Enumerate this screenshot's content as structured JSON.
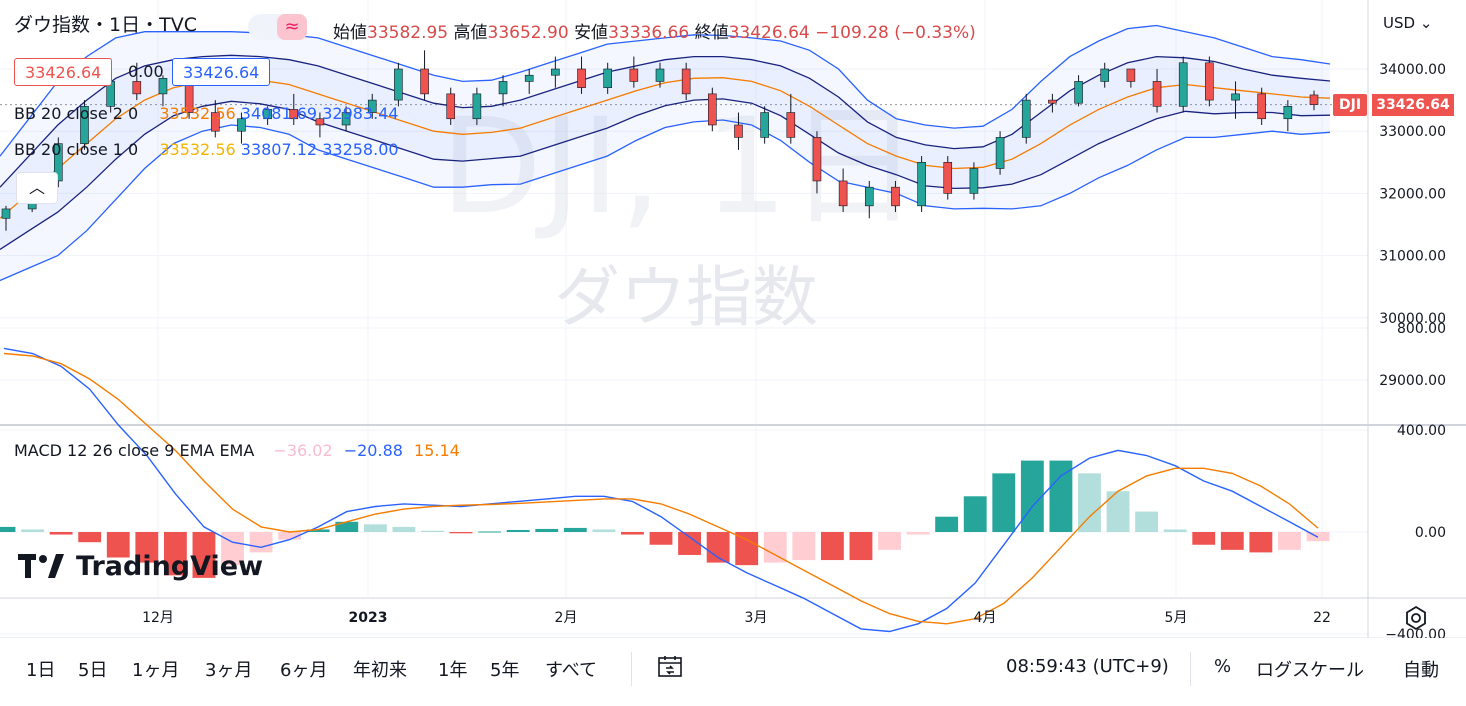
{
  "header": {
    "title": "ダウ指数・1日・TVC",
    "ohlc": [
      {
        "label": "始値",
        "value": "33582.95"
      },
      {
        "label": "高値",
        "value": "33652.90"
      },
      {
        "label": "安値",
        "value": "33336.66"
      },
      {
        "label": "終値",
        "value": "33426.64"
      }
    ],
    "change": "−109.28 (−0.33%)",
    "currency": "USD"
  },
  "badges": {
    "red_price": "33426.64",
    "zero": "0.00",
    "blue_price": "33426.64"
  },
  "legend": {
    "bb2": {
      "label": "BB 20 close 2 0",
      "basis": "33532.56",
      "upper": "34081.69",
      "lower": "32983.44"
    },
    "bb1": {
      "label": "BB 20 close 1 0",
      "basis": "33532.56",
      "upper": "33807.12",
      "lower": "33258.00"
    },
    "macd": {
      "label": "MACD 12 26 close 9 EMA EMA",
      "hist": "−36.02",
      "macd": "−20.88",
      "signal": "15.14"
    }
  },
  "watermark": {
    "symbol": "DJI, 1日",
    "name": "ダウ指数"
  },
  "last_price": {
    "symbol": "DJI",
    "value": "33426.64"
  },
  "logo": "TradingView",
  "chart_data": {
    "type": "candlestick",
    "price_axis": {
      "ticks": [
        "34000.00",
        "33000.00",
        "32000.00",
        "31000.00",
        "30000.00",
        "29000.00"
      ]
    },
    "macd_axis": {
      "ticks": [
        "800.00",
        "400.00",
        "0.00",
        "−400.00"
      ]
    },
    "time_axis": {
      "ticks": [
        "12月",
        "2023",
        "2月",
        "3月",
        "4月",
        "5月",
        "22"
      ]
    },
    "colors": {
      "up": "#26a69a",
      "down": "#ef5350",
      "bb_outer": "#2962ff",
      "bb_basis": "#f57c00",
      "macd": "#2962ff",
      "signal": "#f57c00"
    },
    "bb_basis": [
      31600,
      32000,
      32400,
      32800,
      33200,
      33500,
      33700,
      33800,
      33850,
      33820,
      33750,
      33600,
      33450,
      33300,
      33150,
      33000,
      32950,
      32980,
      33050,
      33200,
      33350,
      33500,
      33650,
      33780,
      33850,
      33860,
      33800,
      33650,
      33400,
      33100,
      32800,
      32600,
      32450,
      32400,
      32420,
      32550,
      32800,
      33100,
      33350,
      33550,
      33700,
      33750,
      33700,
      33650,
      33600,
      33550,
      33530
    ],
    "bb1_upper": [
      32100,
      32600,
      33100,
      33500,
      33850,
      34050,
      34150,
      34200,
      34220,
      34200,
      34150,
      34050,
      33900,
      33750,
      33600,
      33450,
      33380,
      33400,
      33500,
      33650,
      33800,
      33950,
      34050,
      34150,
      34200,
      34200,
      34150,
      34050,
      33850,
      33550,
      33150,
      32900,
      32780,
      32720,
      32750,
      32950,
      33300,
      33650,
      33900,
      34100,
      34200,
      34180,
      34120,
      34000,
      33900,
      33850,
      33807
    ],
    "bb1_lower": [
      31100,
      31400,
      31700,
      32100,
      32550,
      32950,
      33250,
      33400,
      33480,
      33440,
      33350,
      33150,
      33000,
      32850,
      32700,
      32550,
      32520,
      32560,
      32600,
      32750,
      32900,
      33050,
      33250,
      33410,
      33500,
      33520,
      33450,
      33250,
      32950,
      32650,
      32450,
      32300,
      32120,
      32080,
      32090,
      32150,
      32300,
      32550,
      32800,
      33000,
      33200,
      33320,
      33280,
      33300,
      33300,
      33250,
      33258
    ],
    "bb2_upper": [
      32600,
      33200,
      33800,
      34200,
      34500,
      34600,
      34600,
      34600,
      34600,
      34580,
      34550,
      34500,
      34350,
      34200,
      34050,
      33900,
      33800,
      33820,
      33950,
      34100,
      34250,
      34400,
      34450,
      34500,
      34550,
      34540,
      34500,
      34450,
      34300,
      34000,
      33500,
      33200,
      33100,
      33050,
      33080,
      33350,
      33800,
      34200,
      34450,
      34650,
      34700,
      34600,
      34500,
      34350,
      34200,
      34150,
      34081
    ],
    "bb2_lower": [
      30600,
      30800,
      31000,
      31400,
      31900,
      32400,
      32800,
      33000,
      33100,
      33060,
      32950,
      32700,
      32550,
      32400,
      32250,
      32100,
      32100,
      32140,
      32150,
      32300,
      32450,
      32600,
      32850,
      33060,
      33150,
      33180,
      33100,
      32850,
      32500,
      32200,
      32100,
      32000,
      31800,
      31750,
      31760,
      31750,
      31800,
      32000,
      32250,
      32450,
      32700,
      32900,
      32900,
      32950,
      33000,
      32950,
      32983
    ],
    "candles": [
      [
        31600,
        31800,
        31400,
        31750
      ],
      [
        31750,
        32300,
        31700,
        32200
      ],
      [
        32200,
        32900,
        32100,
        32800
      ],
      [
        32800,
        33500,
        32700,
        33400
      ],
      [
        33400,
        33900,
        33300,
        33800
      ],
      [
        33800,
        34100,
        33500,
        33600
      ],
      [
        33600,
        33900,
        33400,
        33850
      ],
      [
        33850,
        34000,
        33200,
        33300
      ],
      [
        33300,
        33500,
        32900,
        33000
      ],
      [
        33000,
        33300,
        32800,
        33200
      ],
      [
        33200,
        33400,
        33100,
        33350
      ],
      [
        33350,
        33600,
        33100,
        33200
      ],
      [
        33200,
        33300,
        32900,
        33100
      ],
      [
        33100,
        33400,
        33000,
        33300
      ],
      [
        33300,
        33600,
        33200,
        33500
      ],
      [
        33500,
        34100,
        33400,
        34000
      ],
      [
        34000,
        34300,
        33500,
        33600
      ],
      [
        33600,
        33700,
        33100,
        33200
      ],
      [
        33200,
        33700,
        33100,
        33600
      ],
      [
        33600,
        33900,
        33400,
        33800
      ],
      [
        33800,
        34000,
        33600,
        33900
      ],
      [
        33900,
        34200,
        33700,
        34000
      ],
      [
        34000,
        34200,
        33600,
        33700
      ],
      [
        33700,
        34100,
        33600,
        34000
      ],
      [
        34000,
        34200,
        33700,
        33800
      ],
      [
        33800,
        34100,
        33700,
        34000
      ],
      [
        34000,
        34100,
        33500,
        33600
      ],
      [
        33600,
        33700,
        33000,
        33100
      ],
      [
        33100,
        33300,
        32700,
        32900
      ],
      [
        32900,
        33400,
        32800,
        33300
      ],
      [
        33300,
        33600,
        32800,
        32900
      ],
      [
        32900,
        33000,
        32000,
        32200
      ],
      [
        32200,
        32400,
        31700,
        31800
      ],
      [
        31800,
        32200,
        31600,
        32100
      ],
      [
        32100,
        32200,
        31700,
        31800
      ],
      [
        31800,
        32600,
        31700,
        32500
      ],
      [
        32500,
        32600,
        31900,
        32000
      ],
      [
        32000,
        32500,
        31900,
        32400
      ],
      [
        32400,
        33000,
        32300,
        32900
      ],
      [
        32900,
        33600,
        32800,
        33500
      ],
      [
        33500,
        33600,
        33300,
        33450
      ],
      [
        33450,
        33900,
        33400,
        33800
      ],
      [
        33800,
        34100,
        33700,
        34000
      ],
      [
        34000,
        34000,
        33700,
        33800
      ],
      [
        33800,
        34000,
        33300,
        33400
      ],
      [
        33400,
        34200,
        33300,
        34100
      ],
      [
        34100,
        34200,
        33400,
        33500
      ],
      [
        33500,
        33800,
        33200,
        33600
      ],
      [
        33600,
        33700,
        33100,
        33200
      ],
      [
        33200,
        33500,
        33000,
        33400
      ],
      [
        33582.95,
        33652.9,
        33336.66,
        33426.64
      ]
    ],
    "macd_line": [
      720,
      700,
      650,
      560,
      420,
      300,
      150,
      20,
      -40,
      -60,
      -30,
      20,
      80,
      100,
      110,
      105,
      100,
      110,
      120,
      130,
      140,
      140,
      120,
      60,
      -20,
      -100,
      -160,
      -210,
      -260,
      -320,
      -380,
      -390,
      -360,
      -300,
      -200,
      -50,
      100,
      220,
      290,
      320,
      300,
      260,
      200,
      160,
      100,
      40,
      -20.88
    ],
    "signal_line": [
      700,
      690,
      660,
      600,
      520,
      420,
      320,
      200,
      90,
      20,
      0,
      10,
      40,
      70,
      90,
      100,
      105,
      108,
      112,
      118,
      124,
      130,
      130,
      110,
      70,
      20,
      -30,
      -90,
      -150,
      -210,
      -270,
      -320,
      -350,
      -360,
      -340,
      -280,
      -180,
      -60,
      60,
      160,
      220,
      250,
      250,
      230,
      180,
      110,
      15.14
    ],
    "histogram": [
      20,
      10,
      -10,
      -40,
      -100,
      -120,
      -170,
      -180,
      -130,
      -80,
      -30,
      10,
      40,
      30,
      20,
      5,
      -5,
      2,
      8,
      12,
      16,
      10,
      -10,
      -50,
      -90,
      -120,
      -130,
      -120,
      -110,
      -110,
      -110,
      -70,
      -10,
      60,
      140,
      230,
      280,
      280,
      230,
      160,
      80,
      10,
      -50,
      -70,
      -80,
      -70,
      -36.02
    ]
  },
  "toolbar": {
    "ranges": [
      "1日",
      "5日",
      "1ヶ月",
      "3ヶ月",
      "6ヶ月",
      "年初来",
      "1年",
      "5年",
      "すべて"
    ],
    "time": "08:59:43 (UTC+9)",
    "percent": "%",
    "log": "ログスケール",
    "auto": "自動"
  }
}
